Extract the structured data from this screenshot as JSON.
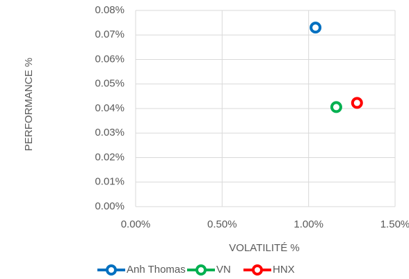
{
  "chart_data": {
    "type": "scatter",
    "x_label": "VOLATILITÉ %",
    "y_label": "PERFORMANCE %",
    "series": [
      {
        "name": "Anh Thomas",
        "color": "#0070c0",
        "x": [
          1.04
        ],
        "values": [
          0.073
        ]
      },
      {
        "name": "VN",
        "color": "#00b050",
        "x": [
          1.16
        ],
        "values": [
          0.0406
        ]
      },
      {
        "name": "HNX",
        "color": "#ff0000",
        "x": [
          1.28
        ],
        "values": [
          0.0423
        ]
      }
    ],
    "xlim": [
      0,
      1.5
    ],
    "xticks": [
      {
        "value": 0,
        "label": "0.00%"
      },
      {
        "value": 0.5,
        "label": "0.50%"
      },
      {
        "value": 1.0,
        "label": "1.00%"
      },
      {
        "value": 1.5,
        "label": "1.50%"
      }
    ],
    "ylim": [
      0,
      0.08
    ],
    "yticks": [
      {
        "value": 0,
        "label": "0.00%"
      },
      {
        "value": 0.01,
        "label": "0.01%"
      },
      {
        "value": 0.02,
        "label": "0.02%"
      },
      {
        "value": 0.03,
        "label": "0.03%"
      },
      {
        "value": 0.04,
        "label": "0.04%"
      },
      {
        "value": 0.05,
        "label": "0.05%"
      },
      {
        "value": 0.06,
        "label": "0.06%"
      },
      {
        "value": 0.07,
        "label": "0.07%"
      },
      {
        "value": 0.08,
        "label": "0.08%"
      }
    ],
    "grid": true,
    "legend": "bottom"
  }
}
